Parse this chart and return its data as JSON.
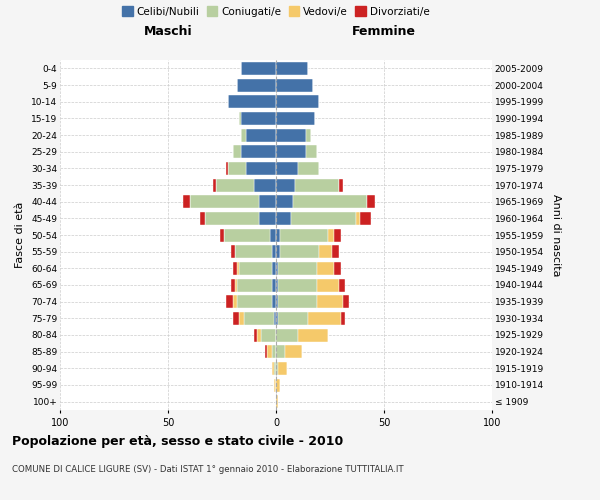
{
  "age_groups": [
    "100+",
    "95-99",
    "90-94",
    "85-89",
    "80-84",
    "75-79",
    "70-74",
    "65-69",
    "60-64",
    "55-59",
    "50-54",
    "45-49",
    "40-44",
    "35-39",
    "30-34",
    "25-29",
    "20-24",
    "15-19",
    "10-14",
    "5-9",
    "0-4"
  ],
  "birth_years": [
    "≤ 1909",
    "1910-1914",
    "1915-1919",
    "1920-1924",
    "1925-1929",
    "1930-1934",
    "1935-1939",
    "1940-1944",
    "1945-1949",
    "1950-1954",
    "1955-1959",
    "1960-1964",
    "1965-1969",
    "1970-1974",
    "1975-1979",
    "1980-1984",
    "1985-1989",
    "1990-1994",
    "1995-1999",
    "2000-2004",
    "2005-2009"
  ],
  "colors": {
    "celibi": "#4472a8",
    "coniugati": "#b8cfa0",
    "vedovi": "#f5c96a",
    "divorziati": "#cc2222"
  },
  "male": {
    "celibi": [
      0,
      0,
      0,
      0,
      0,
      1,
      2,
      2,
      2,
      2,
      3,
      8,
      8,
      10,
      14,
      16,
      14,
      16,
      22,
      18,
      16
    ],
    "coniugati": [
      0,
      0,
      1,
      2,
      7,
      14,
      16,
      16,
      15,
      17,
      21,
      25,
      32,
      18,
      8,
      4,
      2,
      1,
      0,
      0,
      0
    ],
    "vedovi": [
      0,
      1,
      1,
      2,
      2,
      2,
      2,
      1,
      1,
      0,
      0,
      0,
      0,
      0,
      0,
      0,
      0,
      0,
      0,
      0,
      0
    ],
    "divorziati": [
      0,
      0,
      0,
      1,
      1,
      3,
      3,
      2,
      2,
      2,
      2,
      2,
      3,
      1,
      1,
      0,
      0,
      0,
      0,
      0,
      0
    ]
  },
  "female": {
    "nubili": [
      0,
      0,
      0,
      0,
      0,
      1,
      1,
      1,
      1,
      2,
      2,
      7,
      8,
      9,
      10,
      14,
      14,
      18,
      20,
      17,
      15
    ],
    "coniugate": [
      0,
      0,
      1,
      4,
      10,
      14,
      18,
      18,
      18,
      18,
      22,
      30,
      34,
      20,
      10,
      5,
      2,
      0,
      0,
      0,
      0
    ],
    "vedove": [
      1,
      2,
      4,
      8,
      14,
      15,
      12,
      10,
      8,
      6,
      3,
      2,
      0,
      0,
      0,
      0,
      0,
      0,
      0,
      0,
      0
    ],
    "divorziate": [
      0,
      0,
      0,
      0,
      0,
      2,
      3,
      3,
      3,
      3,
      3,
      5,
      4,
      2,
      0,
      0,
      0,
      0,
      0,
      0,
      0
    ]
  },
  "xlim": 100,
  "title": "Popolazione per età, sesso e stato civile - 2010",
  "subtitle": "COMUNE DI CALICE LIGURE (SV) - Dati ISTAT 1° gennaio 2010 - Elaborazione TUTTITALIA.IT",
  "xlabel_left": "Maschi",
  "xlabel_right": "Femmine",
  "ylabel_left": "Fasce di età",
  "ylabel_right": "Anni di nascita",
  "bg_color": "#f5f5f5",
  "plot_bg_color": "#ffffff",
  "grid_color": "#cccccc",
  "legend_labels": [
    "Celibi/Nubili",
    "Coniugati/e",
    "Vedovi/e",
    "Divorziati/e"
  ]
}
